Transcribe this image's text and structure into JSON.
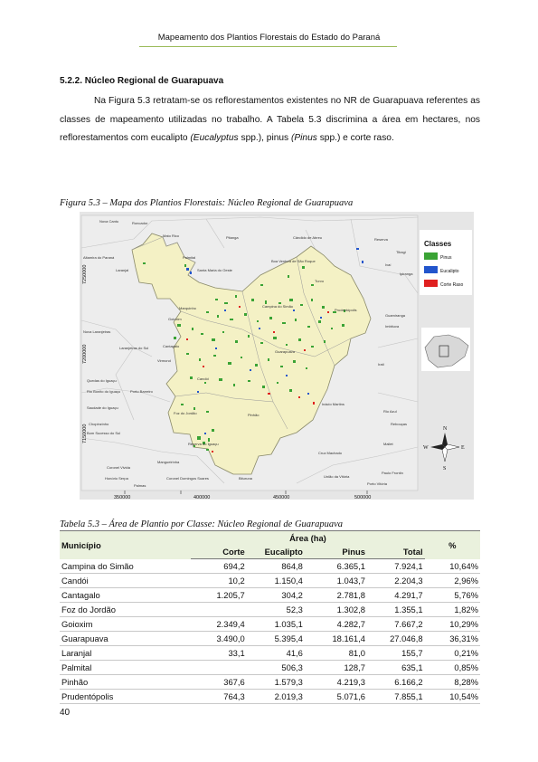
{
  "header": {
    "title": "Mapeamento dos Plantios Florestais do Estado do Paraná"
  },
  "section": {
    "title": "5.2.2.  Núcleo Regional de Guarapuava"
  },
  "paragraph": {
    "p1": "Na Figura 5.3 retratam-se os reflorestamentos existentes no NR de Guarapuava referentes as classes de mapeamento utilizadas no trabalho. A Tabela 5.3 discrimina a área em hectares, nos reflorestamentos com eucalipto ",
    "eucalyptus": "(Eucalyptus",
    "p2": " spp.), pinus ",
    "pinus": "(Pinus",
    "p3": " spp.) e corte raso."
  },
  "figure": {
    "caption": "Figura 5.3 – Mapa dos Plantios Florestais: Núcleo Regional de Guarapuava",
    "legend": {
      "title": "Classes",
      "items": [
        {
          "label": "Pinus",
          "color": "#3aa335"
        },
        {
          "label": "Eucalipto",
          "color": "#2255cc"
        },
        {
          "label": "Corte Raso",
          "color": "#e02020"
        }
      ]
    },
    "x_ticks": [
      "350000",
      "400000",
      "450000",
      "500000"
    ],
    "y_ticks": [
      "7250000",
      "7200000",
      "7150000"
    ],
    "compass": {
      "n": "N",
      "s": "S",
      "e": "E",
      "w": "W"
    },
    "place_labels": [
      "Nova Cantu",
      "Roncador",
      "Mato Rico",
      "Pitanga",
      "Cândido de Abreu",
      "Reserva",
      "Tibagi",
      "Altamira do Paraná",
      "Palmital",
      "Santa Maria do Oeste",
      "Boa Ventura de São Roque",
      "Ivaí",
      "Laranjal",
      "Turvo",
      "Ipiranga",
      "Marquinho",
      "Goioxim",
      "Prudentópolis",
      "Guamiranga",
      "Nova Laranjeiras",
      "Campina do Simão",
      "Imbituva",
      "Laranjeiras do Sul",
      "Cantagalo",
      "Virmond",
      "Guarapuava",
      "Candói",
      "Porto Barreiro",
      "Inácio Martins",
      "Rio Azul",
      "Foz do Jordão",
      "Reserva do Iguaçu",
      "Mallet",
      "Rebouças",
      "Cruz Machado",
      "Mangueirinha",
      "Coronel Vivida",
      "Coronel Domingos Soares",
      "Bituruna",
      "União da Vitória",
      "Paulo Frontin",
      "Porto Vitória",
      "Honório Serpa",
      "Palmas",
      "Pinhão",
      "Chopinzinho",
      "Quedas do Iguaçu",
      "Rio Bonito do Iguaçu",
      "Saudade do Iguaçu",
      "Bom Sucesso do Sul",
      "Irati"
    ]
  },
  "table": {
    "caption": "Tabela 5.3 – Área de Plantio por Classe: Núcleo Regional de Guarapuava",
    "col_municipio": "Município",
    "col_area": "Área (ha)",
    "col_pct": "%",
    "sub_cols": [
      "Corte",
      "Eucalipto",
      "Pinus",
      "Total"
    ],
    "rows": [
      {
        "municipio": "Campina do Simão",
        "corte": "694,2",
        "eucalipto": "864,8",
        "pinus": "6.365,1",
        "total": "7.924,1",
        "pct": "10,64%"
      },
      {
        "municipio": "Candói",
        "corte": "10,2",
        "eucalipto": "1.150,4",
        "pinus": "1.043,7",
        "total": "2.204,3",
        "pct": "2,96%"
      },
      {
        "municipio": "Cantagalo",
        "corte": "1.205,7",
        "eucalipto": "304,2",
        "pinus": "2.781,8",
        "total": "4.291,7",
        "pct": "5,76%"
      },
      {
        "municipio": "Foz do Jordão",
        "corte": "",
        "eucalipto": "52,3",
        "pinus": "1.302,8",
        "total": "1.355,1",
        "pct": "1,82%"
      },
      {
        "municipio": "Goioxim",
        "corte": "2.349,4",
        "eucalipto": "1.035,1",
        "pinus": "4.282,7",
        "total": "7.667,2",
        "pct": "10,29%"
      },
      {
        "municipio": "Guarapuava",
        "corte": "3.490,0",
        "eucalipto": "5.395,4",
        "pinus": "18.161,4",
        "total": "27.046,8",
        "pct": "36,31%"
      },
      {
        "municipio": "Laranjal",
        "corte": "33,1",
        "eucalipto": "41,6",
        "pinus": "81,0",
        "total": "155,7",
        "pct": "0,21%"
      },
      {
        "municipio": "Palmital",
        "corte": "",
        "eucalipto": "506,3",
        "pinus": "128,7",
        "total": "635,1",
        "pct": "0,85%"
      },
      {
        "municipio": "Pinhão",
        "corte": "367,6",
        "eucalipto": "1.579,3",
        "pinus": "4.219,3",
        "total": "6.166,2",
        "pct": "8,28%"
      },
      {
        "municipio": "Prudentópolis",
        "corte": "764,3",
        "eucalipto": "2.019,3",
        "pinus": "5.071,6",
        "total": "7.855,1",
        "pct": "10,54%"
      }
    ]
  },
  "page_number": "40"
}
